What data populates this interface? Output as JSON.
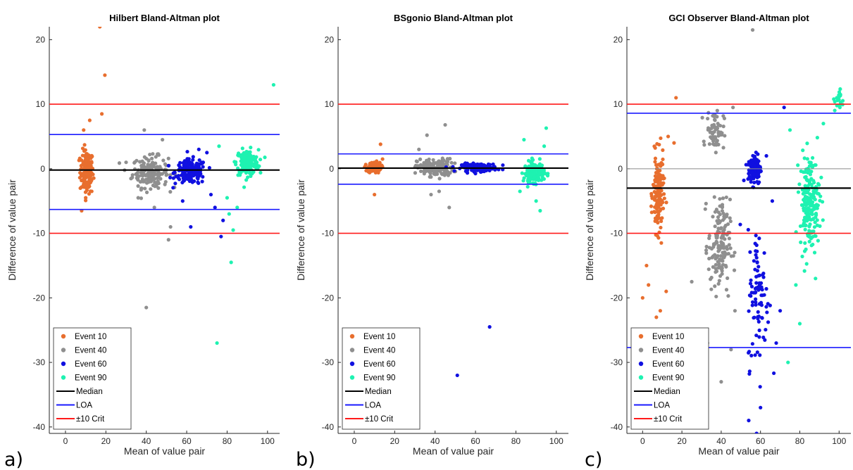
{
  "figure": {
    "panel_letters": [
      "a)",
      "b)",
      "c)"
    ]
  },
  "chart_data": [
    {
      "type": "scatter",
      "title": "Hilbert Bland-Altman plot",
      "xlabel": "Mean of value pair",
      "ylabel": "Difference of value pair",
      "xlim": [
        -8,
        106
      ],
      "ylim": [
        -41,
        22
      ],
      "xticks": [
        0,
        20,
        40,
        60,
        80,
        100
      ],
      "yticks": [
        -40,
        -30,
        -20,
        -10,
        0,
        10,
        20
      ],
      "grid": false,
      "legend_position": "bottom-left",
      "series": [
        {
          "name": "Event 10",
          "color": "#e86e2e",
          "clusters": [
            {
              "x_center": 10.5,
              "x_spread": 3,
              "y_center": -0.5,
              "y_spread": 2.8,
              "n": 150
            }
          ],
          "outliers": [
            [
              17,
              22
            ],
            [
              19.5,
              14.5
            ],
            [
              18,
              8.5
            ],
            [
              12,
              7.5
            ],
            [
              8,
              -6.5
            ],
            [
              10,
              -4.5
            ],
            [
              9,
              6
            ],
            [
              13,
              -3.5
            ]
          ]
        },
        {
          "name": "Event 40",
          "color": "#8f8f8f",
          "clusters": [
            {
              "x_center": 42,
              "x_spread": 8,
              "y_center": -0.5,
              "y_spread": 2,
              "n": 170
            }
          ],
          "outliers": [
            [
              40,
              -21.5
            ],
            [
              51,
              -11
            ],
            [
              52,
              -9
            ],
            [
              48,
              4.5
            ],
            [
              39,
              6
            ],
            [
              44,
              -6
            ],
            [
              36,
              -4.5
            ],
            [
              30,
              1
            ]
          ]
        },
        {
          "name": "Event 60",
          "color": "#1010e0",
          "clusters": [
            {
              "x_center": 62,
              "x_spread": 7,
              "y_center": -0.5,
              "y_spread": 1.6,
              "n": 170
            }
          ],
          "outliers": [
            [
              62,
              -9
            ],
            [
              77,
              -10.5
            ],
            [
              78,
              -8
            ],
            [
              72,
              -4
            ],
            [
              74,
              -6
            ],
            [
              66,
              3
            ],
            [
              70,
              2.5
            ],
            [
              58,
              -5
            ]
          ]
        },
        {
          "name": "Event 90",
          "color": "#1ef2b1",
          "clusters": [
            {
              "x_center": 90,
              "x_spread": 5,
              "y_center": 1,
              "y_spread": 1.6,
              "n": 180
            }
          ],
          "outliers": [
            [
              75,
              -27
            ],
            [
              82,
              -14.5
            ],
            [
              103,
              13
            ],
            [
              76,
              3.5
            ],
            [
              83,
              -9.5
            ],
            [
              81,
              -7
            ],
            [
              80,
              -4.5
            ],
            [
              85,
              -6
            ]
          ]
        }
      ],
      "lines": {
        "median": -0.2,
        "loa": [
          5.3,
          -6.3
        ],
        "crit": [
          10,
          -10
        ]
      },
      "extra_zero_line": false,
      "legend": [
        "Event 10",
        "Event 40",
        "Event 60",
        "Event 90",
        "Median",
        "LOA",
        "±10 Crit"
      ]
    },
    {
      "type": "scatter",
      "title": "BSgonio Bland-Altman plot",
      "xlabel": "Mean of value pair",
      "ylabel": "Difference of value pair",
      "xlim": [
        -8,
        106
      ],
      "ylim": [
        -41,
        22
      ],
      "xticks": [
        0,
        20,
        40,
        60,
        80,
        100
      ],
      "yticks": [
        -40,
        -30,
        -20,
        -10,
        0,
        10,
        20
      ],
      "grid": false,
      "legend_position": "bottom-left",
      "series": [
        {
          "name": "Event 10",
          "color": "#e86e2e",
          "clusters": [
            {
              "x_center": 10,
              "x_spread": 3,
              "y_center": 0.2,
              "y_spread": 0.7,
              "n": 110
            }
          ],
          "outliers": [
            [
              10,
              -4
            ],
            [
              13,
              3.8
            ],
            [
              14,
              1.5
            ]
          ]
        },
        {
          "name": "Event 40",
          "color": "#8f8f8f",
          "clusters": [
            {
              "x_center": 40,
              "x_spread": 8,
              "y_center": 0.2,
              "y_spread": 1.1,
              "n": 160
            }
          ],
          "outliers": [
            [
              45,
              6.8
            ],
            [
              36,
              5.2
            ],
            [
              47,
              -6
            ],
            [
              38,
              -4
            ],
            [
              32,
              3
            ],
            [
              42,
              -3.5
            ]
          ]
        },
        {
          "name": "Event 60",
          "color": "#1010e0",
          "clusters": [
            {
              "x_center": 62,
              "x_spread": 8,
              "y_center": 0.2,
              "y_spread": 0.5,
              "n": 150
            }
          ],
          "outliers": [
            [
              67,
              -24.5
            ],
            [
              51,
              -32
            ]
          ]
        },
        {
          "name": "Event 90",
          "color": "#1ef2b1",
          "clusters": [
            {
              "x_center": 89,
              "x_spread": 4.5,
              "y_center": -0.5,
              "y_spread": 1.3,
              "n": 170
            }
          ],
          "outliers": [
            [
              95,
              6.3
            ],
            [
              92,
              -6.5
            ],
            [
              84,
              4.5
            ],
            [
              90,
              -5
            ],
            [
              82,
              -3.5
            ],
            [
              94,
              3.5
            ]
          ]
        }
      ],
      "lines": {
        "median": 0.1,
        "loa": [
          2.3,
          -2.4
        ],
        "crit": [
          10,
          -10
        ]
      },
      "extra_zero_line": false,
      "legend": [
        "Event 10",
        "Event 40",
        "Event 60",
        "Event 90",
        "Median",
        "LOA",
        "±10 Crit"
      ]
    },
    {
      "type": "scatter",
      "title": "GCI Observer Bland-Altman plot",
      "xlabel": "Mean of value pair",
      "ylabel": "Difference of value pair",
      "xlim": [
        -8,
        106
      ],
      "ylim": [
        -41,
        22
      ],
      "xticks": [
        0,
        20,
        40,
        60,
        80,
        100
      ],
      "yticks": [
        -40,
        -30,
        -20,
        -10,
        0,
        10,
        20
      ],
      "grid": false,
      "legend_position": "bottom-left",
      "series": [
        {
          "name": "Event 10",
          "color": "#e86e2e",
          "clusters": [
            {
              "x_center": 8,
              "x_spread": 2.5,
              "y_center": -4,
              "y_spread": 5,
              "n": 150
            }
          ],
          "outliers": [
            [
              17,
              11
            ],
            [
              0,
              -20
            ],
            [
              3,
              -18
            ],
            [
              7,
              -23
            ],
            [
              12,
              -19
            ],
            [
              13,
              5
            ],
            [
              16,
              4
            ],
            [
              2,
              -15
            ],
            [
              9,
              -22
            ]
          ]
        },
        {
          "name": "Event 40",
          "color": "#8f8f8f",
          "clusters": [
            {
              "x_center": 37,
              "x_spread": 4,
              "y_center": 6,
              "y_spread": 2.5,
              "n": 70
            },
            {
              "x_center": 39,
              "x_spread": 5,
              "y_center": -12,
              "y_spread": 6,
              "n": 150
            }
          ],
          "outliers": [
            [
              56,
              21.5
            ],
            [
              40,
              -33
            ],
            [
              45,
              -28
            ],
            [
              25,
              -17.5
            ],
            [
              46,
              9.5
            ],
            [
              38,
              9
            ],
            [
              33,
              -27
            ],
            [
              47,
              -22
            ]
          ]
        },
        {
          "name": "Event 60",
          "color": "#1010e0",
          "clusters": [
            {
              "x_center": 57,
              "x_spread": 3,
              "y_center": 0,
              "y_spread": 2,
              "n": 120
            },
            {
              "x_center": 59,
              "x_spread": 5,
              "y_center": -20,
              "y_spread": 9,
              "n": 90
            }
          ],
          "outliers": [
            [
              72,
              9.5
            ],
            [
              58,
              -41
            ],
            [
              60,
              -37
            ],
            [
              54,
              -39
            ],
            [
              70,
              -22
            ],
            [
              68,
              -27
            ],
            [
              63,
              2
            ],
            [
              66,
              -5
            ]
          ]
        },
        {
          "name": "Event 90",
          "color": "#1ef2b1",
          "clusters": [
            {
              "x_center": 85,
              "x_spread": 4.5,
              "y_center": -5,
              "y_spread": 6,
              "n": 200
            },
            {
              "x_center": 100,
              "x_spread": 2,
              "y_center": 10.5,
              "y_spread": 1.5,
              "n": 20
            }
          ],
          "outliers": [
            [
              74,
              -30
            ],
            [
              80,
              -24
            ],
            [
              75,
              6
            ],
            [
              92,
              7
            ],
            [
              78,
              -18
            ],
            [
              88,
              -17
            ]
          ]
        }
      ],
      "lines": {
        "median": -3,
        "loa": [
          8.6,
          -27.7
        ],
        "crit": [
          10,
          -10
        ]
      },
      "extra_zero_line": true,
      "legend": [
        "Event 10",
        "Event 40",
        "Event 60",
        "Event 90",
        "Median",
        "LOA",
        "±10 Crit"
      ]
    }
  ]
}
